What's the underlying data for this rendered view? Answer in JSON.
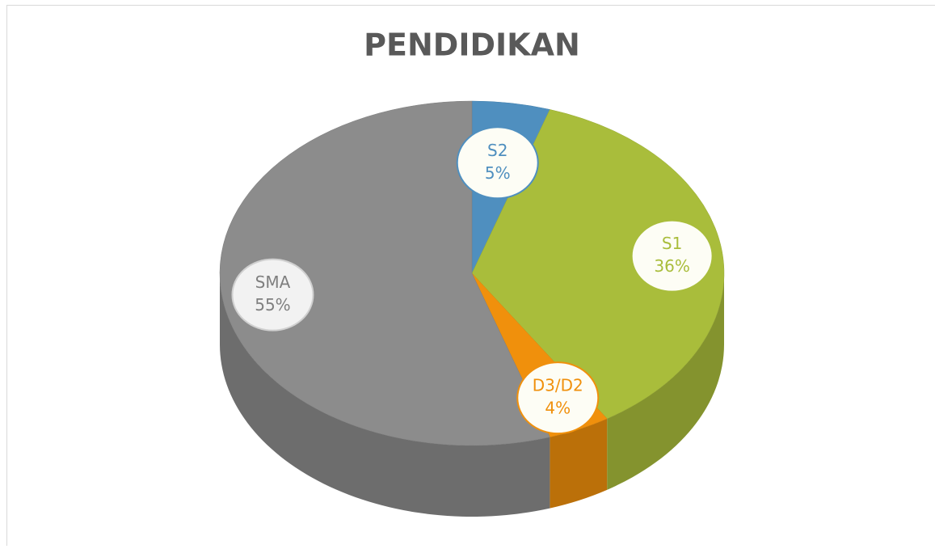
{
  "chart_data": {
    "type": "pie",
    "title": "PENDIDIKAN",
    "categories": [
      "S2",
      "S1",
      "D3/D2",
      "SMA"
    ],
    "values": [
      5,
      36,
      4,
      55
    ],
    "value_labels": [
      "5%",
      "36%",
      "4%",
      "55%"
    ],
    "colors": [
      "#4f8fbf",
      "#a9bd3b",
      "#f0900c",
      "#8c8c8c"
    ]
  }
}
